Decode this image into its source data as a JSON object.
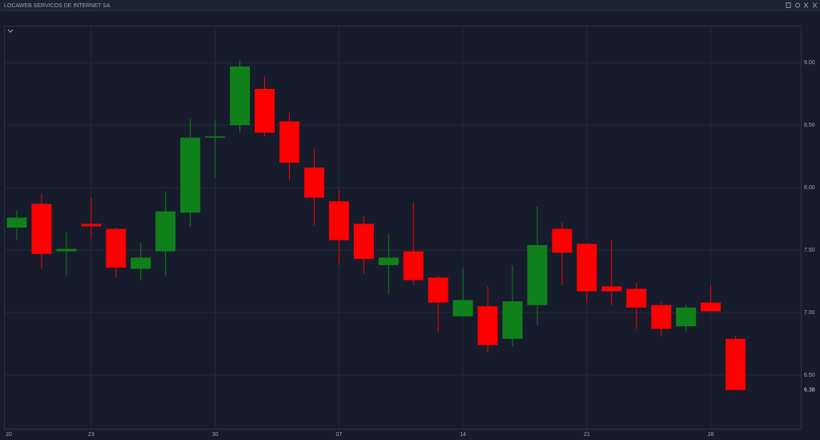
{
  "chart_data": {
    "type": "candlestick",
    "title": "LOCAWEB SERVICOS DE INTERNET SA",
    "categories": [
      "20",
      null,
      null,
      "23",
      null,
      null,
      null,
      null,
      "30",
      null,
      null,
      null,
      null,
      "07",
      null,
      null,
      null,
      null,
      "14",
      null,
      null,
      null,
      null,
      "21",
      null,
      null,
      null,
      null,
      "28",
      null
    ],
    "open": [
      7.68,
      7.87,
      7.49,
      7.71,
      7.67,
      7.35,
      7.49,
      7.8,
      8.4,
      8.5,
      8.79,
      8.53,
      8.16,
      7.89,
      7.71,
      7.38,
      7.49,
      7.28,
      6.97,
      7.05,
      6.79,
      7.06,
      7.67,
      7.55,
      7.21,
      7.19,
      7.06,
      6.89,
      7.08,
      6.79
    ],
    "high": [
      7.82,
      7.95,
      7.64,
      7.92,
      7.68,
      7.56,
      7.97,
      8.55,
      8.54,
      9.02,
      8.89,
      8.6,
      8.31,
      7.98,
      7.77,
      7.63,
      7.88,
      7.29,
      7.36,
      7.21,
      7.38,
      7.85,
      7.72,
      7.55,
      7.58,
      7.24,
      7.09,
      7.06,
      7.22,
      6.81
    ],
    "low": [
      7.58,
      7.35,
      7.3,
      7.59,
      7.28,
      7.26,
      7.29,
      7.69,
      8.08,
      8.44,
      8.41,
      8.06,
      7.7,
      7.38,
      7.31,
      7.15,
      7.22,
      6.84,
      6.97,
      6.68,
      6.73,
      6.9,
      7.22,
      7.08,
      7.06,
      6.87,
      6.81,
      6.85,
      7.01,
      6.38
    ],
    "close": [
      7.76,
      7.47,
      7.51,
      7.69,
      7.36,
      7.44,
      7.81,
      8.4,
      8.41,
      8.97,
      8.44,
      8.2,
      7.92,
      7.58,
      7.43,
      7.44,
      7.26,
      7.08,
      7.1,
      6.74,
      7.09,
      7.54,
      7.48,
      7.17,
      7.17,
      7.04,
      6.87,
      7.04,
      7.01,
      6.38
    ],
    "up_color": "#10811a",
    "down_color": "#ff0000",
    "ylim": [
      6.07,
      9.29
    ],
    "yticks": [
      {
        "value": 6.5,
        "label": "6.50"
      },
      {
        "value": 7,
        "label": "7.00"
      },
      {
        "value": 7.5,
        "label": "7.50"
      },
      {
        "value": 8,
        "label": "8.00"
      },
      {
        "value": 8.5,
        "label": "8.50"
      },
      {
        "value": 9,
        "label": "9.00"
      }
    ],
    "last_price": {
      "value": 6.38,
      "label": "6.38"
    },
    "grid": true
  }
}
